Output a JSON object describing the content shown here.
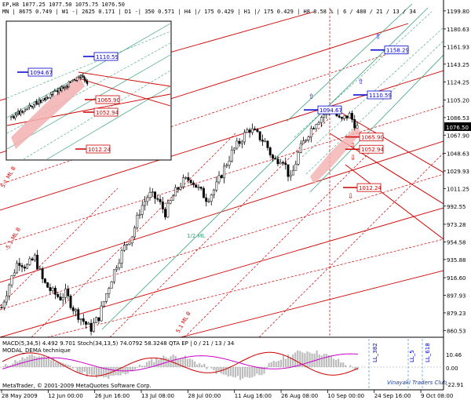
{
  "header": {
    "line1": "EP,H8  1077.25 1077.50 1075.75 1076.50",
    "line2": "MN | 8675  0.749 | W1 -| 2625  0.171 | D1 -| 350  0.571 | H4 |/ 175  0.429 | H1 |/ 175  0.429 | H8  8.58 % | 6 / 480 / 21 / 13 / 34"
  },
  "watermark": {
    "copyright": "MetaTrader, © 2001-2009 MetaQuotes Software Corp.",
    "brand": "Vinayaki Traders Club"
  },
  "colors": {
    "background": "#ffffff",
    "candle": "#000000",
    "channel_green": "#3aa37a",
    "channel_red": "#d00000",
    "price_label_blue": "#0000cc",
    "price_label_red": "#cc0000",
    "current_price_bg": "#000000",
    "macd_histogram": "#bdbdbd",
    "stoch_main": "#cc0000",
    "stoch_signal": "#cc00cc"
  },
  "chart_data": {
    "type": "candlestick",
    "instrument": "EP",
    "timeframe": "H8",
    "current_price": 1076.5,
    "ylim": [
      855.0,
      1203.0
    ],
    "y_ticks": [
      "1199.80",
      "1180.63",
      "1161.93",
      "1143.25",
      "1124.25",
      "1105.20",
      "1086.53",
      "1076.50",
      "1067.90",
      "1048.63",
      "1029.93",
      "1011.25",
      "992.55",
      "973.28",
      "954.58",
      "935.88",
      "916.60",
      "897.93",
      "879.23",
      "860.53"
    ],
    "x_ticks": [
      "28 May 2009",
      "12 Jun 00:00",
      "26 Jun 16:00",
      "13 Jul 08:00",
      "28 Jul 00:00",
      "11 Aug 16:00",
      "26 Aug 08:00",
      "10 Sep 00:00",
      "24 Sep 16:00",
      "9 Oct 08:00"
    ],
    "price_path": [
      [
        0,
        885
      ],
      [
        0.03,
        912
      ],
      [
        0.06,
        935
      ],
      [
        0.09,
        928
      ],
      [
        0.12,
        938
      ],
      [
        0.15,
        912
      ],
      [
        0.18,
        902
      ],
      [
        0.21,
        895
      ],
      [
        0.23,
        900
      ],
      [
        0.26,
        883
      ],
      [
        0.29,
        872
      ],
      [
        0.32,
        862
      ],
      [
        0.35,
        875
      ],
      [
        0.38,
        902
      ],
      [
        0.41,
        928
      ],
      [
        0.44,
        948
      ],
      [
        0.47,
        962
      ],
      [
        0.5,
        990
      ],
      [
        0.53,
        1005
      ],
      [
        0.56,
        1000
      ],
      [
        0.59,
        985
      ],
      [
        0.62,
        1005
      ],
      [
        0.65,
        1018
      ],
      [
        0.68,
        1022
      ],
      [
        0.71,
        1010
      ],
      [
        0.74,
        1000
      ],
      [
        0.77,
        1012
      ],
      [
        0.8,
        1032
      ],
      [
        0.83,
        1050
      ],
      [
        0.86,
        1062
      ],
      [
        0.89,
        1075
      ],
      [
        0.92,
        1068
      ],
      [
        0.95,
        1060
      ],
      [
        0.98,
        1040
      ],
      [
        1.01,
        1045
      ],
      [
        1.04,
        1020
      ],
      [
        1.07,
        1050
      ],
      [
        1.1,
        1068
      ],
      [
        1.13,
        1082
      ],
      [
        1.16,
        1090
      ],
      [
        1.19,
        1096
      ],
      [
        1.22,
        1082
      ],
      [
        1.25,
        1090
      ],
      [
        1.28,
        1076
      ]
    ],
    "annotations": {
      "ml_label": "1/2 ML",
      "fib_labels": [
        "LL_382",
        "LL_5",
        "LL_618"
      ],
      "channel_labels": [
        "5.1 ML 8",
        "-5.1 ML 8",
        "5.1 ML 8"
      ]
    },
    "price_labels": [
      {
        "text": "1158.29",
        "color": "blue",
        "arrow": "up"
      },
      {
        "text": "1110.59",
        "color": "blue",
        "arrow": "up"
      },
      {
        "text": "1094.67",
        "color": "blue",
        "arrow": "up"
      },
      {
        "text": "1065.90",
        "color": "red",
        "arrow": "down"
      },
      {
        "text": "1052.94",
        "color": "red",
        "arrow": "down"
      },
      {
        "text": "1012.24",
        "color": "red",
        "arrow": "down"
      }
    ],
    "inset_price_labels": [
      {
        "text": "1110.59",
        "color": "blue"
      },
      {
        "text": "1094.67",
        "color": "blue"
      },
      {
        "text": "1065.90",
        "color": "red"
      },
      {
        "text": "1052.94",
        "color": "red"
      },
      {
        "text": "1012.24",
        "color": "red"
      }
    ],
    "indicator": {
      "header": "MACD(5,34,5) 4.492 9.701   Stoch(34,13,5) 74.0792 58.3248   QTA EP | 0 / 21 / 13 / 34",
      "subheader": "MODAL_DEMA technique",
      "y_ticks": [
        "10.46",
        "0.00",
        "-22.91"
      ]
    }
  }
}
